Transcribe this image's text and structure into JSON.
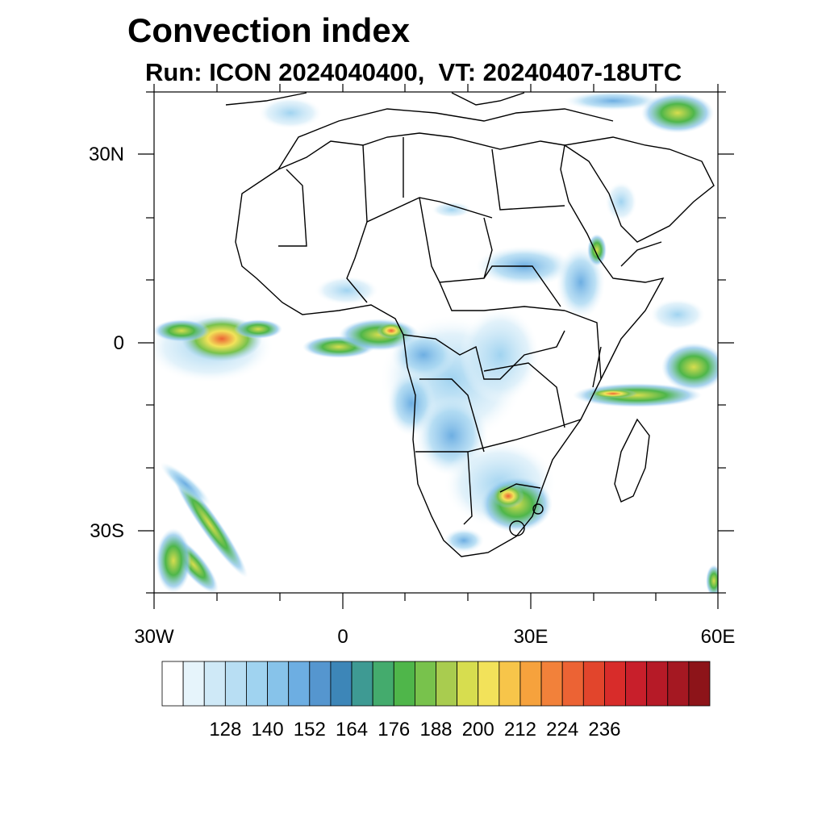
{
  "title": "Convection index",
  "subtitle": "Run: ICON 2024040400,  VT: 20240407-18UTC",
  "map": {
    "lon_range": [
      "30W",
      "60E"
    ],
    "lat_range": [
      "40S",
      "40N"
    ],
    "lat_labels": [
      "30N",
      "0",
      "30S"
    ],
    "lon_labels": [
      "30W",
      "0",
      "30E",
      "60E"
    ]
  },
  "colorbar": {
    "labels": [
      "128",
      "140",
      "152",
      "164",
      "176",
      "188",
      "200",
      "212",
      "224",
      "236"
    ],
    "colors": [
      "#ffffff",
      "#e6f4fb",
      "#cfe9f7",
      "#b8def3",
      "#a0d3f0",
      "#87c3ea",
      "#6daee2",
      "#5596cf",
      "#3d86b8",
      "#3e9a93",
      "#44ab6d",
      "#4fb64a",
      "#78c24c",
      "#a9cc4f",
      "#d7dd4f",
      "#f2e25a",
      "#f7c54a",
      "#f6a23d",
      "#f2813a",
      "#ec6334",
      "#e2452c",
      "#d82c2a",
      "#c81f2b",
      "#b61a27",
      "#a51822",
      "#8d1419"
    ]
  }
}
